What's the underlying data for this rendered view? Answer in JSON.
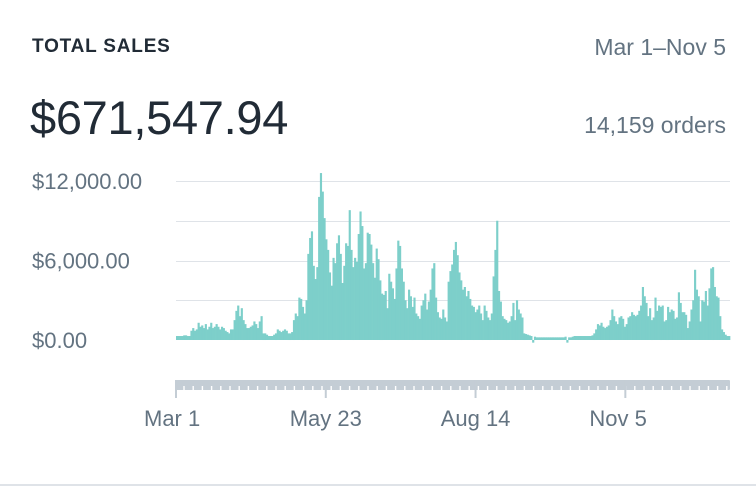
{
  "header": {
    "title": "TOTAL SALES",
    "date_range": "Mar 1–Nov 5",
    "total_amount": "$671,547.94",
    "orders": "14,159 orders"
  },
  "colors": {
    "accent": "#7dcfca",
    "text_primary": "#212b36",
    "text_secondary": "#637381",
    "grid": "#dfe3e8",
    "scrubber": "#c4cdd5"
  },
  "chart_data": {
    "type": "bar",
    "title": "TOTAL SALES",
    "xlabel": "",
    "ylabel": "",
    "ylim": [
      -500,
      12500
    ],
    "grid": true,
    "yticks": [
      {
        "value": 12000,
        "label": "$12,000.00"
      },
      {
        "value": 6000,
        "label": "$6,000.00"
      },
      {
        "value": 0,
        "label": "$0.00"
      }
    ],
    "xticks": [
      {
        "index": 0,
        "label": "Mar 1"
      },
      {
        "index": 83,
        "label": "May 23"
      },
      {
        "index": 166,
        "label": "Aug 14"
      },
      {
        "index": 249,
        "label": "Nov 5"
      }
    ],
    "values": [
      300,
      300,
      300,
      300,
      350,
      350,
      300,
      300,
      700,
      900,
      700,
      800,
      1300,
      1000,
      1100,
      900,
      1200,
      800,
      1000,
      1300,
      900,
      1000,
      1200,
      1000,
      800,
      1000,
      900,
      700,
      600,
      500,
      800,
      800,
      1500,
      2200,
      2600,
      1800,
      2400,
      1500,
      1200,
      900,
      900,
      1000,
      1100,
      1400,
      1200,
      900,
      1400,
      1800,
      500,
      500,
      400,
      300,
      300,
      300,
      400,
      500,
      800,
      700,
      600,
      700,
      800,
      700,
      500,
      500,
      600,
      1500,
      2000,
      1800,
      3200,
      3100,
      2500,
      2000,
      3000,
      6500,
      7700,
      8200,
      5600,
      4600,
      5500,
      10800,
      12600,
      11200,
      9200,
      7600,
      6800,
      5100,
      4100,
      6200,
      5800,
      7300,
      7900,
      6500,
      4300,
      5600,
      7300,
      7100,
      9800,
      6800,
      5500,
      6200,
      5900,
      8000,
      9700,
      8600,
      5400,
      5800,
      8100,
      8000,
      7200,
      5800,
      4700,
      6900,
      6100,
      4500,
      3500,
      3400,
      3700,
      2400,
      5000,
      4400,
      3900,
      3100,
      5400,
      7500,
      7100,
      5400,
      4400,
      3000,
      2400,
      3800,
      3300,
      2500,
      3200,
      2000,
      1800,
      1600,
      2600,
      3000,
      3500,
      2300,
      2900,
      3800,
      5400,
      5800,
      3200,
      2100,
      1700,
      1600,
      2300,
      1700,
      1400,
      4400,
      5200,
      5700,
      6800,
      7400,
      6400,
      5100,
      4500,
      3800,
      4000,
      3300,
      3700,
      3100,
      2600,
      2500,
      2100,
      2300,
      2600,
      2000,
      1500,
      2600,
      2200,
      1700,
      1500,
      2000,
      4800,
      6800,
      9000,
      3700,
      2900,
      1800,
      1600,
      1500,
      1300,
      1400,
      1800,
      2800,
      1500,
      3000,
      2300,
      2000,
      1700,
      500,
      450,
      400,
      350,
      300,
      -200,
      250,
      200,
      200,
      200,
      200,
      200,
      200,
      200,
      200,
      200,
      200,
      200,
      200,
      200,
      200,
      200,
      200,
      250,
      -200,
      200,
      200,
      250,
      300,
      300,
      300,
      300,
      300,
      300,
      300,
      300,
      300,
      300,
      350,
      500,
      800,
      1200,
      1100,
      1300,
      1000,
      900,
      1000,
      1100,
      1500,
      2300,
      1800,
      1400,
      1200,
      1700,
      1800,
      1600,
      1000,
      1200,
      1700,
      1800,
      2100,
      1900,
      1800,
      1900,
      2200,
      2600,
      4000,
      3300,
      2800,
      1800,
      2400,
      1500,
      1700,
      3200,
      2200,
      2600,
      2500,
      2600,
      1400,
      1500,
      2500,
      2100,
      2300,
      2200,
      1600,
      1700,
      3600,
      2800,
      2100,
      2100,
      1900,
      900,
      1400,
      2300,
      3000,
      5300,
      3800,
      3300,
      1400,
      3000,
      2900,
      3700,
      2600,
      3900,
      5400,
      5500,
      4000,
      3300,
      3200,
      1800,
      800,
      600,
      400,
      300,
      300
    ]
  }
}
